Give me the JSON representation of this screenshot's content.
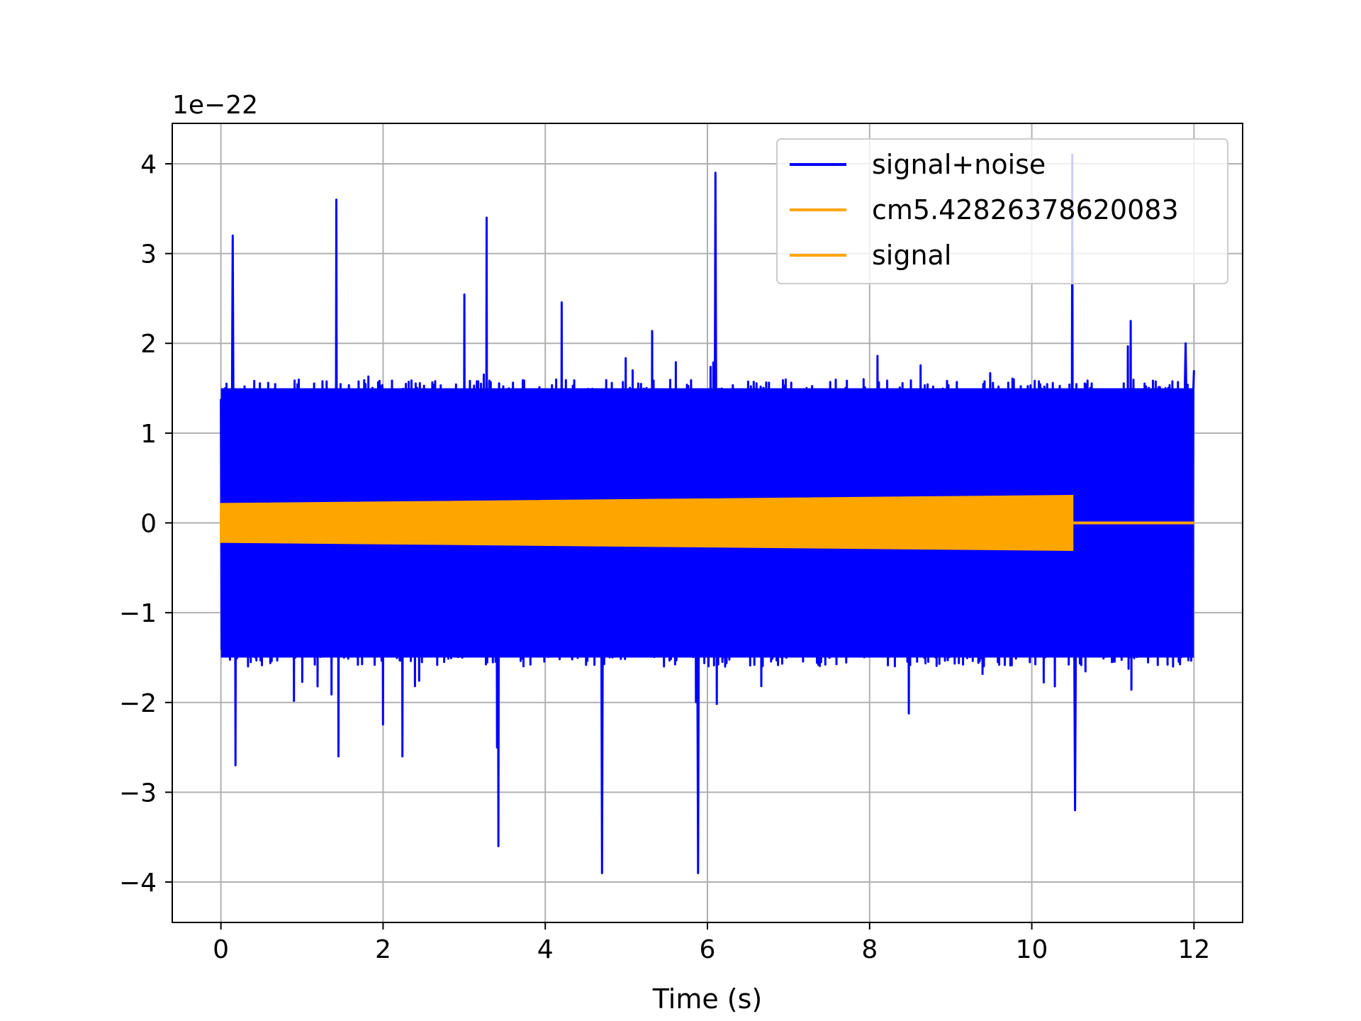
{
  "chart_data": {
    "type": "line",
    "title": "",
    "xlabel": "Time (s)",
    "ylabel": "",
    "y_offset_label": "1e−22",
    "xlim": [
      -0.6,
      12.6
    ],
    "ylim": [
      -4.45,
      4.45
    ],
    "x_ticks": [
      0,
      2,
      4,
      6,
      8,
      10,
      12
    ],
    "x_tick_labels": [
      "0",
      "2",
      "4",
      "6",
      "8",
      "10",
      "12"
    ],
    "y_ticks": [
      -4,
      -3,
      -2,
      -1,
      0,
      1,
      2,
      3,
      4
    ],
    "y_tick_labels": [
      "−4",
      "−3",
      "−2",
      "−1",
      "0",
      "1",
      "2",
      "3",
      "4"
    ],
    "grid": true,
    "legend_position": "top-right",
    "series": [
      {
        "name": "signal+noise",
        "color": "#0000ff",
        "description_samples": {
          "x_range": [
            0,
            12
          ],
          "typical_envelope": [
            -1.5,
            1.5
          ],
          "peaks": [
            {
              "x": 0.05,
              "y": 1.5
            },
            {
              "x": 0.15,
              "y": 3.2
            },
            {
              "x": 0.18,
              "y": -2.7
            },
            {
              "x": 1.42,
              "y": 3.6
            },
            {
              "x": 1.45,
              "y": -2.6
            },
            {
              "x": 3.28,
              "y": 3.4
            },
            {
              "x": 3.42,
              "y": -3.6
            },
            {
              "x": 4.7,
              "y": -3.9
            },
            {
              "x": 6.1,
              "y": 3.9
            },
            {
              "x": 5.88,
              "y": -3.9
            },
            {
              "x": 10.5,
              "y": 4.1
            },
            {
              "x": 10.53,
              "y": -3.2
            },
            {
              "x": 11.9,
              "y": 2.0
            },
            {
              "x": 12.0,
              "y": 1.7
            }
          ]
        }
      },
      {
        "name": "cm5.42826378620083",
        "color": "#ffa500",
        "description_samples": {
          "x_range": [
            0,
            10.5
          ],
          "amplitude_start": 0.21,
          "amplitude_end": 0.3,
          "after_end_value": 0
        }
      },
      {
        "name": "signal",
        "color": "#ffa500",
        "description_samples": {
          "x_range": [
            10.5,
            12
          ],
          "value": 0
        }
      }
    ]
  }
}
